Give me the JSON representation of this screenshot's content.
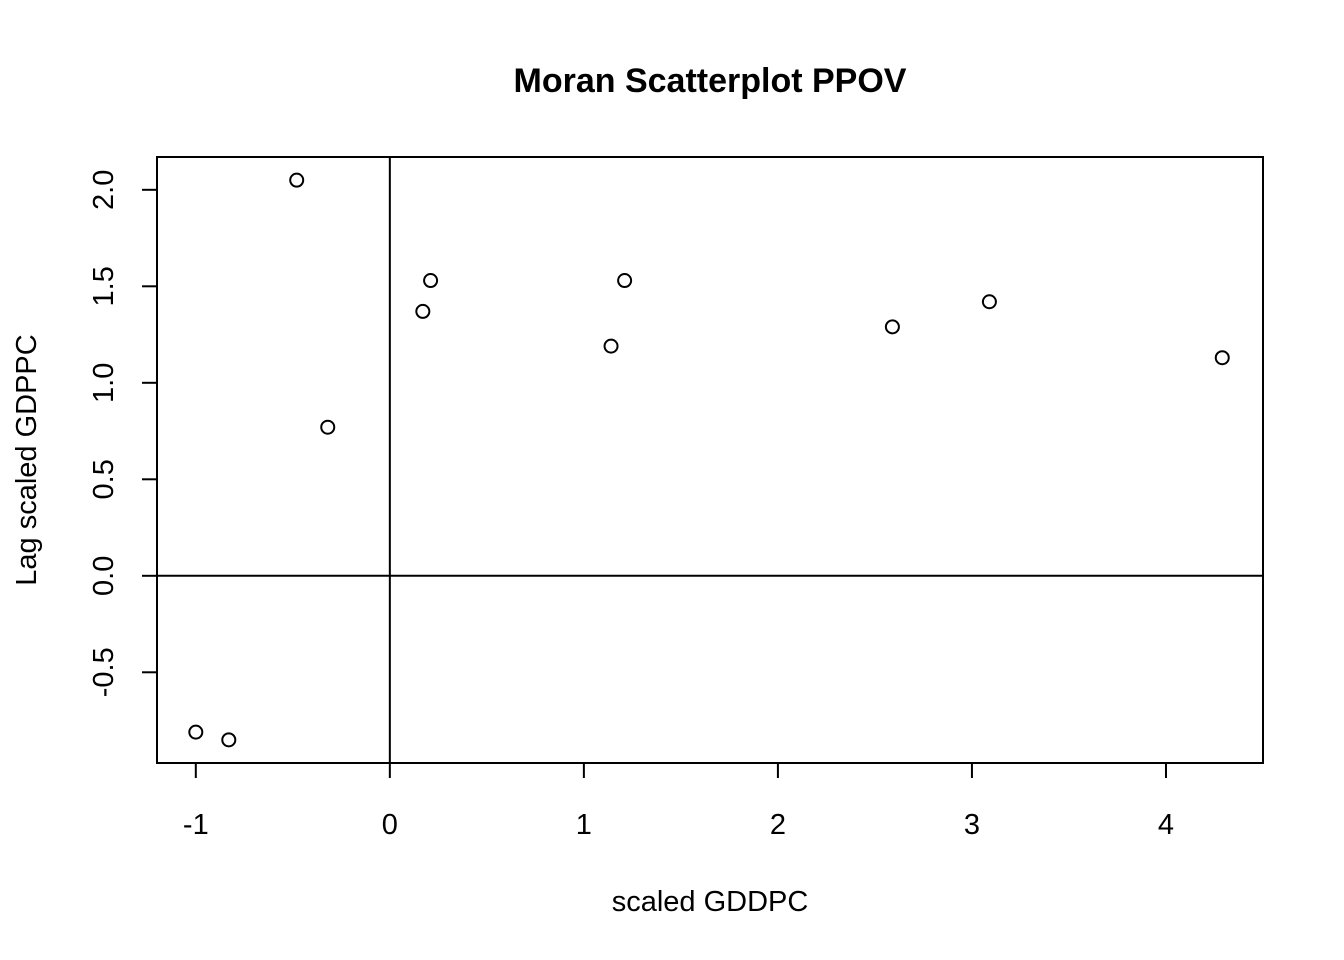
{
  "chart_data": {
    "type": "scatter",
    "title": "Moran Scatterplot PPOV",
    "xlabel": "scaled GDDPC",
    "ylabel": "Lag scaled GDPPC",
    "xlim": [
      -1.2,
      4.5
    ],
    "ylim": [
      -0.97,
      2.17
    ],
    "x_ticks": [
      -1,
      0,
      1,
      2,
      3,
      4
    ],
    "x_tick_labels": [
      "-1",
      "0",
      "1",
      "2",
      "3",
      "4"
    ],
    "y_ticks": [
      -0.5,
      0.0,
      0.5,
      1.0,
      1.5,
      2.0
    ],
    "y_tick_labels": [
      "-0.5",
      "0.0",
      "0.5",
      "1.0",
      "1.5",
      "2.0"
    ],
    "reference_lines": {
      "x": 0,
      "y": 0
    },
    "grid": false,
    "legend": "none",
    "points": [
      {
        "x": -1.0,
        "y": -0.81
      },
      {
        "x": -0.83,
        "y": -0.85
      },
      {
        "x": -0.48,
        "y": 2.05
      },
      {
        "x": -0.32,
        "y": 0.77
      },
      {
        "x": 0.17,
        "y": 1.37
      },
      {
        "x": 0.21,
        "y": 1.53
      },
      {
        "x": 1.14,
        "y": 1.19
      },
      {
        "x": 1.21,
        "y": 1.53
      },
      {
        "x": 2.59,
        "y": 1.29
      },
      {
        "x": 3.09,
        "y": 1.42
      },
      {
        "x": 4.29,
        "y": 1.13
      }
    ]
  }
}
